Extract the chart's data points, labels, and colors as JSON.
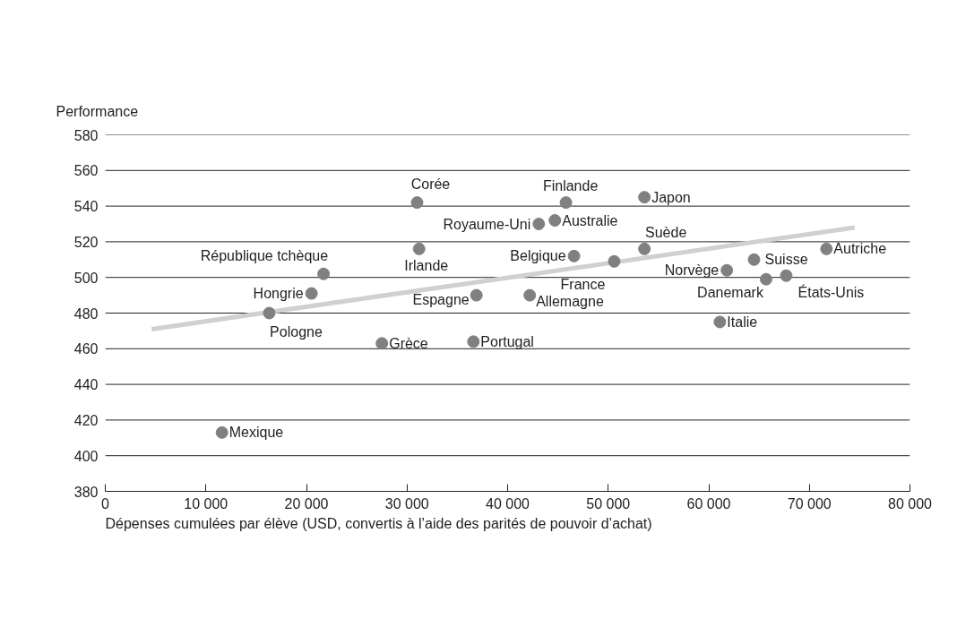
{
  "chart_data": {
    "type": "scatter",
    "ylabel": "Performance",
    "xlabel": "Dépenses cumulées par élève (USD, convertis à l’aide des parités de pouvoir d’achat)",
    "xlim": [
      0,
      80000
    ],
    "xticks": [
      {
        "value": 0,
        "label": "0"
      },
      {
        "value": 10000,
        "label": "10 000"
      },
      {
        "value": 20000,
        "label": "20 000"
      },
      {
        "value": 30000,
        "label": "30 000"
      },
      {
        "value": 40000,
        "label": "40 000"
      },
      {
        "value": 50000,
        "label": "50 000"
      },
      {
        "value": 60000,
        "label": "60 000"
      },
      {
        "value": 70000,
        "label": "70 000"
      },
      {
        "value": 80000,
        "label": "80 000"
      }
    ],
    "ylim": [
      380,
      580
    ],
    "yticks": [
      380,
      400,
      420,
      440,
      460,
      480,
      500,
      520,
      540,
      560,
      580
    ],
    "grid": "y",
    "series": [
      {
        "type": "line",
        "color": "#d0d0d0",
        "x": [
          4600,
          74500
        ],
        "values": [
          471,
          528
        ]
      },
      {
        "color": "#808080",
        "marker": "circle",
        "x": [
          11600,
          16300,
          20500,
          21700,
          27500,
          31000,
          31200,
          36600,
          36900,
          42200,
          43100,
          44700,
          45800,
          46600,
          50600,
          53600,
          53600,
          61100,
          61800,
          64500,
          65700,
          67700,
          71700
        ],
        "values": [
          413,
          480,
          491,
          502,
          463,
          542,
          516,
          464,
          490,
          490,
          530,
          532,
          542,
          512,
          509,
          516,
          545,
          475,
          504,
          510,
          499,
          501,
          516
        ]
      }
    ],
    "annotations": [
      {
        "text": "Mexique",
        "x": 11600,
        "y": 413
      },
      {
        "text": "Pologne",
        "x": 16300,
        "y": 480
      },
      {
        "text": "Hongrie",
        "x": 20500,
        "y": 491
      },
      {
        "text": "République tchèque",
        "x": 21700,
        "y": 502
      },
      {
        "text": "Grèce",
        "x": 27500,
        "y": 463
      },
      {
        "text": "Corée",
        "x": 31000,
        "y": 542
      },
      {
        "text": "Irlande",
        "x": 31200,
        "y": 516
      },
      {
        "text": "Portugal",
        "x": 36600,
        "y": 464
      },
      {
        "text": "Espagne",
        "x": 36900,
        "y": 490
      },
      {
        "text": "Allemagne",
        "x": 42200,
        "y": 490
      },
      {
        "text": "Royaume-Uni",
        "x": 43100,
        "y": 530
      },
      {
        "text": "Australie",
        "x": 44700,
        "y": 532
      },
      {
        "text": "Finlande",
        "x": 45800,
        "y": 542
      },
      {
        "text": "Belgique",
        "x": 46600,
        "y": 512
      },
      {
        "text": "France",
        "x": 50600,
        "y": 509
      },
      {
        "text": "Suède",
        "x": 53600,
        "y": 516
      },
      {
        "text": "Japon",
        "x": 53600,
        "y": 545
      },
      {
        "text": "Italie",
        "x": 61100,
        "y": 475
      },
      {
        "text": "Norvège",
        "x": 61800,
        "y": 504
      },
      {
        "text": "Suisse",
        "x": 64500,
        "y": 510
      },
      {
        "text": "Danemark",
        "x": 65700,
        "y": 499
      },
      {
        "text": "États-Unis",
        "x": 67700,
        "y": 501
      },
      {
        "text": "Autriche",
        "x": 71700,
        "y": 516
      }
    ]
  }
}
